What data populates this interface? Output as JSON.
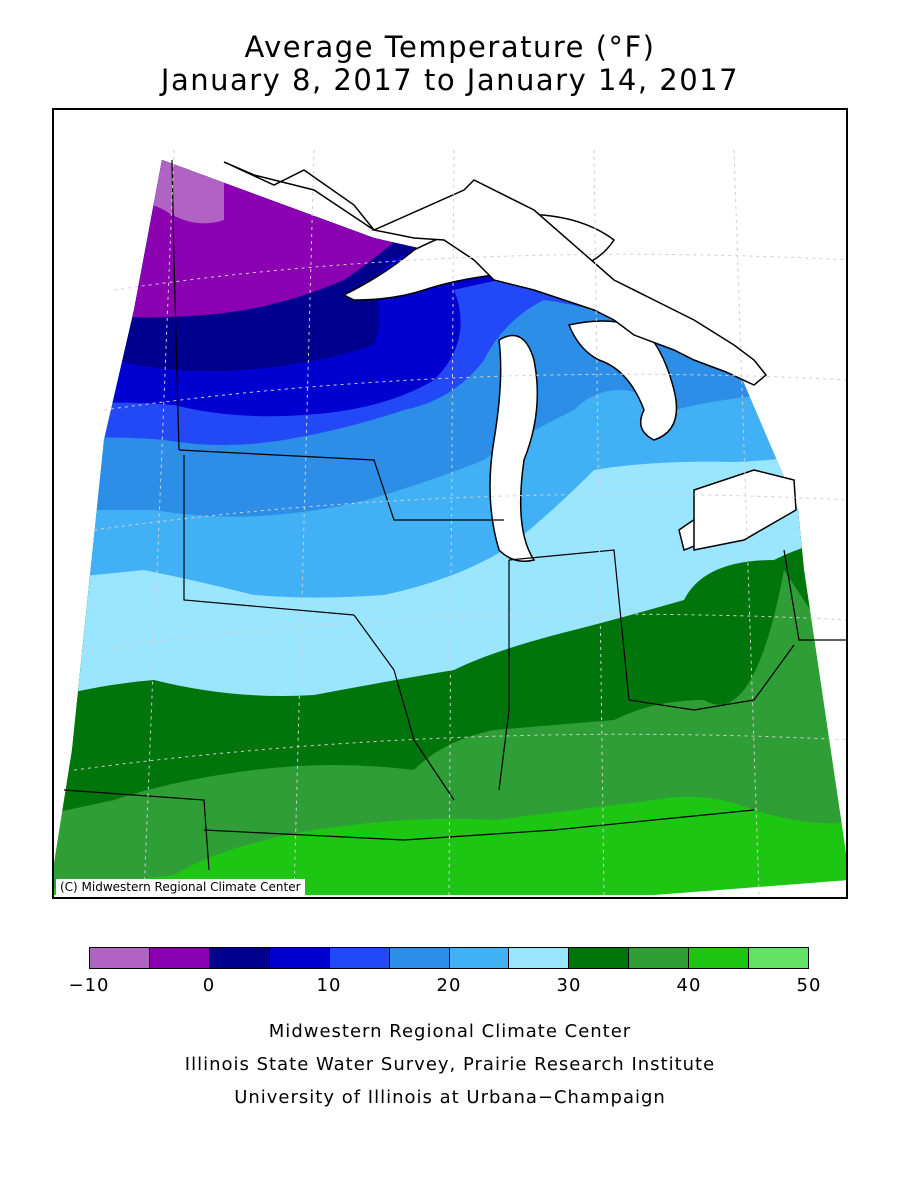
{
  "title": {
    "line1": "Average Temperature (°F)",
    "line2": "January 8, 2017 to January 14, 2017"
  },
  "map": {
    "copyright": "(C) Midwestern Regional Climate Center",
    "band_colors": [
      "#b063c3",
      "#8b00b0",
      "#00008f",
      "#0000d0",
      "#2348f5",
      "#2d8ee8",
      "#41b0f5",
      "#9ae5ff",
      "#00750b",
      "#2f9e37",
      "#1ec614",
      "#64e064"
    ]
  },
  "legend": {
    "min": -10,
    "step": 5,
    "tick_labels": [
      "−10",
      "0",
      "10",
      "20",
      "30",
      "40",
      "50"
    ],
    "tick_values": [
      -10,
      0,
      10,
      20,
      30,
      40,
      50
    ],
    "colors": [
      "#b063c3",
      "#8b00b0",
      "#00008f",
      "#0000d0",
      "#2348f5",
      "#2d8ee8",
      "#41b0f5",
      "#9ae5ff",
      "#00750b",
      "#2f9e37",
      "#1ec614",
      "#64e064"
    ]
  },
  "credits": {
    "line1": "Midwestern Regional Climate Center",
    "line2": "Illinois State Water Survey, Prairie Research Institute",
    "line3": "University of Illinois at Urbana−Champaign"
  }
}
